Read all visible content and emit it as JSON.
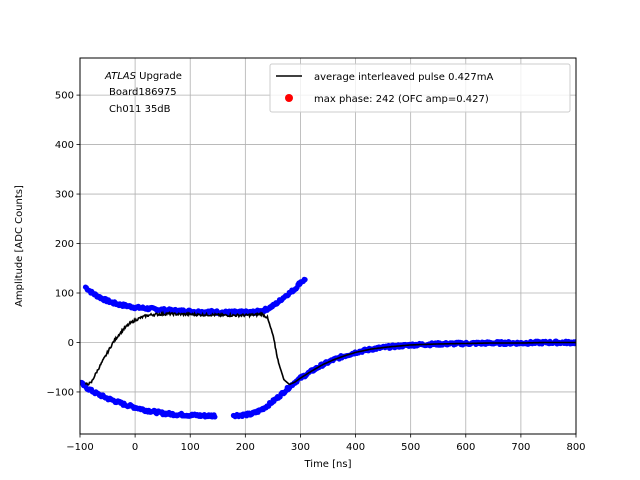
{
  "chart_data": {
    "type": "scatter",
    "xlabel": "Time [ns]",
    "ylabel": "Amplitude [ADC Counts]",
    "xlim": [
      -100,
      800
    ],
    "ylim": [
      -185,
      575
    ],
    "xticks": [
      -100,
      0,
      100,
      200,
      300,
      400,
      500,
      600,
      700,
      800
    ],
    "yticks": [
      -100,
      0,
      100,
      200,
      300,
      400,
      500
    ],
    "grid": true,
    "legend_position": "top-right",
    "annotation": {
      "line1_italic": "ATLAS",
      "line1_rest": " Upgrade",
      "line2": "Board186975",
      "line3": "Ch011 35dB"
    },
    "series": [
      {
        "name": "average interleaved pulse 0.427mA",
        "kind": "line",
        "color": "#000000",
        "x": [
          -90,
          -80,
          -70,
          -60,
          -50,
          -40,
          -30,
          -20,
          -10,
          0,
          10,
          20,
          30,
          40,
          60,
          80,
          100,
          120,
          140,
          160,
          180,
          200,
          220,
          230,
          240,
          250,
          260,
          270,
          280,
          290,
          300,
          320,
          340,
          360,
          380,
          400,
          430,
          460,
          500,
          550,
          600,
          650,
          700,
          750,
          800
        ],
        "y": [
          -85,
          -82,
          -60,
          -40,
          -20,
          0,
          15,
          28,
          38,
          45,
          50,
          54,
          56,
          57,
          58,
          57,
          57,
          56,
          56,
          55,
          55,
          55,
          56,
          58,
          50,
          15,
          -40,
          -75,
          -85,
          -80,
          -72,
          -58,
          -45,
          -35,
          -27,
          -20,
          -13,
          -9,
          -5,
          -3,
          -2,
          -1,
          -1,
          0,
          0
        ]
      },
      {
        "name": "",
        "kind": "points",
        "color": "#0000ff",
        "upper_branch": {
          "x": [
            -90,
            -80,
            -70,
            -60,
            -50,
            -40,
            -30,
            -20,
            -10,
            0,
            10,
            20,
            30,
            40,
            60,
            80,
            100,
            120,
            140,
            160,
            180,
            200,
            210,
            220,
            230,
            240,
            250,
            260,
            270,
            280,
            290,
            300,
            310
          ],
          "y": [
            112,
            102,
            95,
            89,
            84,
            80,
            77,
            75,
            73,
            71,
            70,
            69,
            68,
            67,
            65,
            64,
            63,
            62,
            62,
            61,
            61,
            61,
            61,
            62,
            64,
            68,
            74,
            82,
            92,
            100,
            108,
            122,
            128
          ]
        },
        "lower_branch": {
          "x": [
            -100,
            -90,
            -80,
            -70,
            -60,
            -50,
            -40,
            -30,
            -20,
            -10,
            0,
            10,
            20,
            30,
            40,
            50,
            60,
            70,
            80,
            90,
            100,
            110,
            120,
            130,
            140,
            180,
            190,
            200,
            210,
            220,
            230,
            240,
            250,
            260,
            270,
            280,
            290,
            300,
            320,
            340,
            360,
            380,
            400,
            430,
            460,
            500,
            550,
            600,
            650,
            700,
            750,
            800
          ],
          "y": [
            -80,
            -90,
            -97,
            -103,
            -108,
            -113,
            -117,
            -121,
            -125,
            -128,
            -131,
            -134,
            -137,
            -139,
            -141,
            -143,
            -144,
            -145,
            -146,
            -146,
            -147,
            -147,
            -148,
            -148,
            -148,
            -147,
            -147,
            -146,
            -145,
            -141,
            -135,
            -128,
            -119,
            -110,
            -100,
            -90,
            -80,
            -72,
            -58,
            -45,
            -35,
            -27,
            -20,
            -13,
            -9,
            -5,
            -3,
            -2,
            -1,
            -1,
            0,
            0
          ]
        }
      },
      {
        "name": "max phase: 242 (OFC amp=0.427)",
        "kind": "marker",
        "color": "#ff0000",
        "x": [],
        "y": []
      }
    ]
  }
}
